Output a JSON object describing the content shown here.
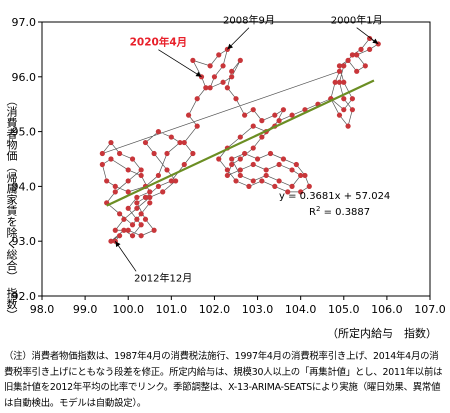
{
  "chart_data": {
    "type": "scatter",
    "xlabel": "（所定内給与　指数）",
    "ylabel": "（消費者物価（帰属家賃を除く総合）　指数）",
    "xlim": [
      98.0,
      107.0
    ],
    "ylim": [
      92.0,
      97.0
    ],
    "xticks": [
      "98.0",
      "99.0",
      "100.0",
      "101.0",
      "102.0",
      "103.0",
      "104.0",
      "105.0",
      "106.0",
      "107.0"
    ],
    "yticks": [
      "92.0",
      "93.0",
      "94.0",
      "95.0",
      "96.0",
      "97.0"
    ],
    "grid": false,
    "series": [
      {
        "connected": true,
        "color": "#c8363a",
        "line_color": "#555555",
        "points": [
          [
            99.7,
            93.0
          ],
          [
            99.8,
            93.1
          ],
          [
            99.6,
            93.0
          ],
          [
            99.9,
            93.2
          ],
          [
            100.1,
            93.1
          ],
          [
            100.3,
            93.3
          ],
          [
            100.2,
            93.4
          ],
          [
            100.0,
            93.6
          ],
          [
            100.2,
            93.8
          ],
          [
            100.5,
            93.9
          ],
          [
            100.3,
            94.2
          ],
          [
            100.0,
            94.3
          ],
          [
            99.6,
            94.5
          ],
          [
            99.4,
            94.4
          ],
          [
            99.5,
            94.1
          ],
          [
            99.7,
            94.0
          ],
          [
            100.0,
            93.9
          ],
          [
            100.4,
            94.0
          ],
          [
            100.7,
            94.2
          ],
          [
            100.9,
            94.6
          ],
          [
            101.2,
            94.8
          ],
          [
            101.0,
            94.9
          ],
          [
            100.7,
            95.0
          ],
          [
            100.4,
            94.8
          ],
          [
            100.6,
            94.6
          ],
          [
            100.9,
            94.3
          ],
          [
            101.1,
            94.1
          ],
          [
            100.8,
            93.9
          ],
          [
            100.5,
            93.8
          ],
          [
            100.2,
            93.6
          ],
          [
            99.9,
            93.4
          ],
          [
            99.7,
            93.2
          ],
          [
            100.0,
            93.2
          ],
          [
            100.3,
            93.1
          ],
          [
            100.6,
            93.2
          ],
          [
            100.4,
            93.4
          ],
          [
            100.2,
            93.7
          ],
          [
            100.4,
            93.8
          ],
          [
            100.7,
            94.0
          ],
          [
            101.0,
            94.1
          ],
          [
            101.3,
            94.4
          ],
          [
            101.5,
            94.6
          ],
          [
            101.3,
            94.8
          ],
          [
            101.6,
            95.1
          ],
          [
            101.4,
            95.3
          ],
          [
            101.6,
            95.6
          ],
          [
            101.8,
            95.8
          ],
          [
            101.7,
            96.0
          ],
          [
            101.5,
            96.3
          ],
          [
            101.9,
            96.2
          ],
          [
            102.1,
            96.4
          ],
          [
            102.3,
            96.5
          ],
          [
            102.2,
            96.2
          ],
          [
            102.0,
            96.0
          ],
          [
            101.9,
            95.8
          ],
          [
            102.2,
            95.9
          ],
          [
            102.4,
            96.0
          ],
          [
            102.6,
            96.3
          ],
          [
            102.4,
            96.1
          ],
          [
            102.3,
            95.8
          ],
          [
            102.5,
            95.6
          ],
          [
            102.7,
            95.3
          ],
          [
            102.9,
            95.4
          ],
          [
            103.1,
            95.2
          ],
          [
            103.4,
            95.3
          ],
          [
            103.6,
            95.4
          ],
          [
            103.4,
            95.1
          ],
          [
            103.1,
            94.9
          ],
          [
            102.9,
            94.7
          ],
          [
            102.6,
            94.5
          ],
          [
            102.4,
            94.4
          ],
          [
            102.3,
            94.2
          ],
          [
            102.6,
            94.3
          ],
          [
            102.9,
            94.4
          ],
          [
            103.2,
            94.3
          ],
          [
            103.5,
            94.4
          ],
          [
            103.8,
            94.3
          ],
          [
            104.0,
            94.2
          ],
          [
            103.8,
            94.0
          ],
          [
            103.5,
            94.1
          ],
          [
            103.2,
            94.2
          ],
          [
            102.9,
            94.1
          ],
          [
            102.6,
            94.2
          ],
          [
            102.4,
            94.5
          ],
          [
            102.7,
            94.6
          ],
          [
            103.0,
            94.5
          ],
          [
            103.3,
            94.6
          ],
          [
            103.6,
            94.5
          ],
          [
            103.9,
            94.4
          ],
          [
            104.1,
            94.2
          ],
          [
            104.2,
            94.0
          ],
          [
            104.0,
            93.9
          ],
          [
            103.7,
            93.9
          ],
          [
            103.4,
            94.0
          ],
          [
            103.1,
            94.1
          ],
          [
            102.8,
            94.0
          ],
          [
            102.5,
            94.1
          ],
          [
            102.3,
            94.3
          ],
          [
            102.1,
            94.5
          ],
          [
            102.3,
            94.7
          ],
          [
            102.6,
            94.9
          ],
          [
            102.9,
            95.1
          ],
          [
            103.2,
            95.0
          ],
          [
            103.5,
            95.2
          ],
          [
            103.8,
            95.3
          ],
          [
            104.1,
            95.4
          ],
          [
            104.4,
            95.5
          ],
          [
            104.7,
            95.6
          ],
          [
            105.0,
            95.4
          ],
          [
            105.2,
            95.6
          ],
          [
            105.0,
            95.9
          ],
          [
            104.9,
            96.2
          ],
          [
            105.1,
            96.3
          ],
          [
            105.3,
            96.1
          ],
          [
            105.5,
            96.2
          ],
          [
            105.3,
            96.4
          ],
          [
            105.6,
            96.5
          ],
          [
            105.8,
            96.6
          ],
          [
            105.6,
            96.7
          ],
          [
            105.4,
            96.5
          ],
          [
            105.2,
            96.4
          ],
          [
            105.0,
            96.2
          ],
          [
            104.9,
            95.9
          ],
          [
            105.0,
            95.6
          ],
          [
            105.2,
            95.4
          ],
          [
            105.1,
            95.1
          ],
          [
            104.9,
            95.3
          ],
          [
            104.7,
            95.6
          ],
          [
            104.8,
            95.9
          ],
          [
            104.9,
            96.1
          ],
          [
            99.4,
            94.6
          ],
          [
            99.6,
            94.8
          ],
          [
            99.8,
            94.6
          ],
          [
            100.1,
            94.5
          ],
          [
            100.3,
            94.3
          ],
          [
            100.0,
            94.1
          ],
          [
            99.7,
            93.9
          ],
          [
            99.5,
            93.7
          ],
          [
            99.8,
            93.5
          ],
          [
            100.1,
            93.3
          ],
          [
            100.3,
            93.5
          ],
          [
            100.5,
            93.7
          ]
        ]
      }
    ],
    "trendline": {
      "slope": 0.3681,
      "intercept": 57.024,
      "x_start": 99.5,
      "x_end": 105.7,
      "color": "#6b8e23",
      "equation": "y = 0.3681x + 57.024",
      "r2_label": "R",
      "r2_sup": "2",
      "r2_value": " = 0.3887"
    },
    "annotations": [
      {
        "text": "2008年9月",
        "point": [
          102.3,
          96.5
        ],
        "label": [
          102.8,
          96.95
        ],
        "color": "#000000"
      },
      {
        "text": "2000年1月",
        "point": [
          105.8,
          96.6
        ],
        "label": [
          105.3,
          96.95
        ],
        "color": "#000000"
      },
      {
        "text": "2020年4月",
        "point": [
          101.7,
          96.0
        ],
        "label": [
          100.7,
          96.55
        ],
        "color": "#e8202a"
      },
      {
        "text": "2012年12月",
        "point": [
          99.7,
          93.0
        ],
        "label": [
          100.6,
          92.25
        ],
        "color": "#000000"
      }
    ]
  },
  "note": "（注）消費者物価指数は、1987年4月の消費税法施行、1997年4月の消費税率引き上げ、2014年4月の消費税率引き上げにともなう段差を修正。所定内給与は、規模30人以上の「再集計値」とし、2011年以前は旧集計値を2012年平均の比率でリンク。季節調整は、X-13-ARIMA-SEATSにより実施（曜日効果、異常値は自動検出。モデルは自動設定）。"
}
